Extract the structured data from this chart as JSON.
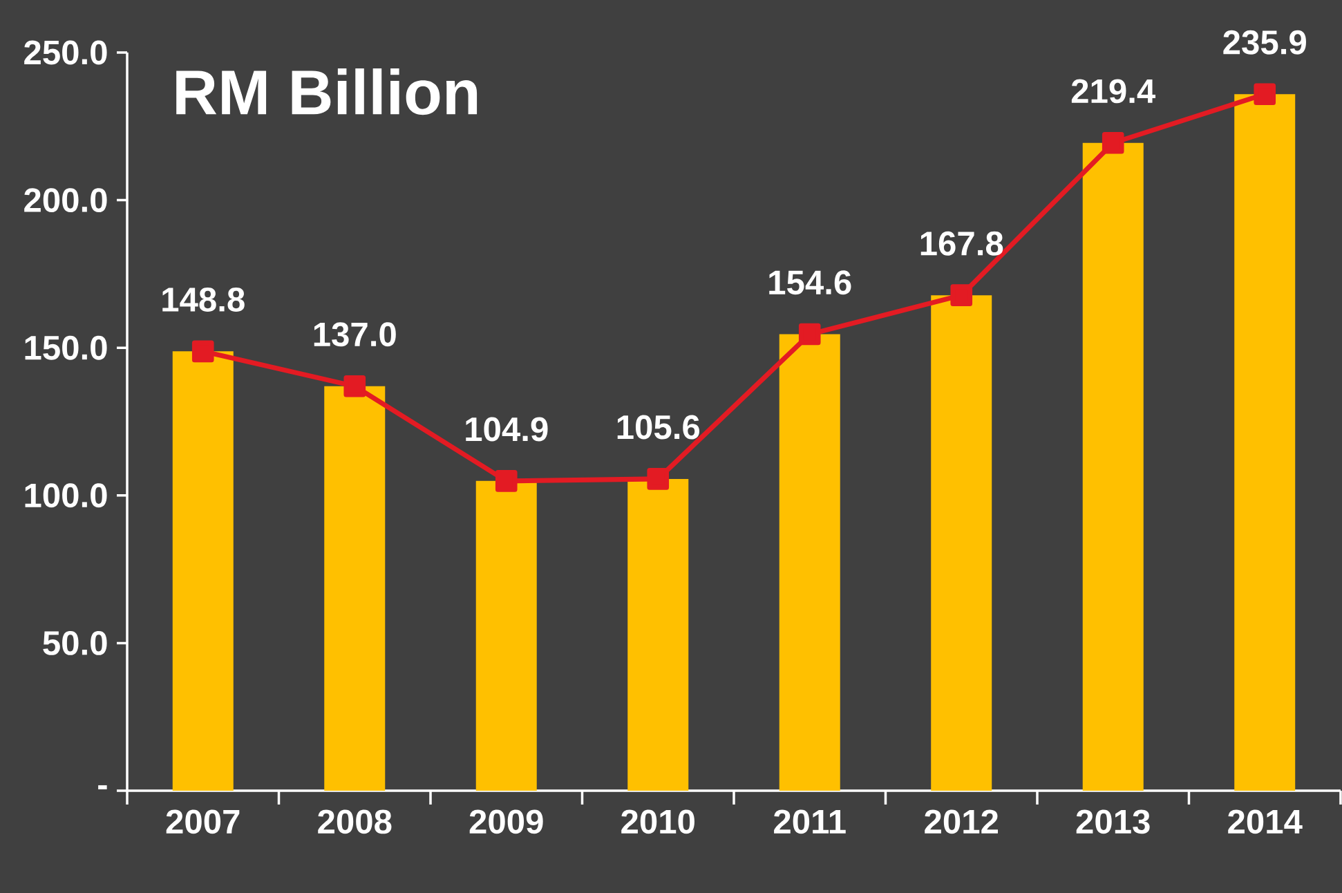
{
  "chart_data": {
    "type": "bar",
    "title": "RM Billion",
    "categories": [
      "2007",
      "2008",
      "2009",
      "2010",
      "2011",
      "2012",
      "2013",
      "2014"
    ],
    "series": [
      {
        "color": "#ffc000",
        "values": [
          148.8,
          137.0,
          104.9,
          105.6,
          154.6,
          167.8,
          219.4,
          235.9
        ],
        "value_labels": [
          "148.8",
          "137.0",
          "104.9",
          "105.6",
          "154.6",
          "167.8",
          "219.4",
          "235.9"
        ]
      },
      {
        "type": "line",
        "color": "#e31b23",
        "marker": "square",
        "line_style": "solid",
        "values": [
          148.8,
          137.0,
          104.9,
          105.6,
          154.6,
          167.8,
          219.4,
          235.9
        ]
      }
    ],
    "ylim": [
      0,
      250
    ],
    "yticks": [
      {
        "value": 0,
        "label": "-"
      },
      {
        "value": 50,
        "label": "50.0"
      },
      {
        "value": 100,
        "label": "100.0"
      },
      {
        "value": 150,
        "label": "150.0"
      },
      {
        "value": 200,
        "label": "200.0"
      },
      {
        "value": 250,
        "label": "250.0"
      }
    ]
  }
}
